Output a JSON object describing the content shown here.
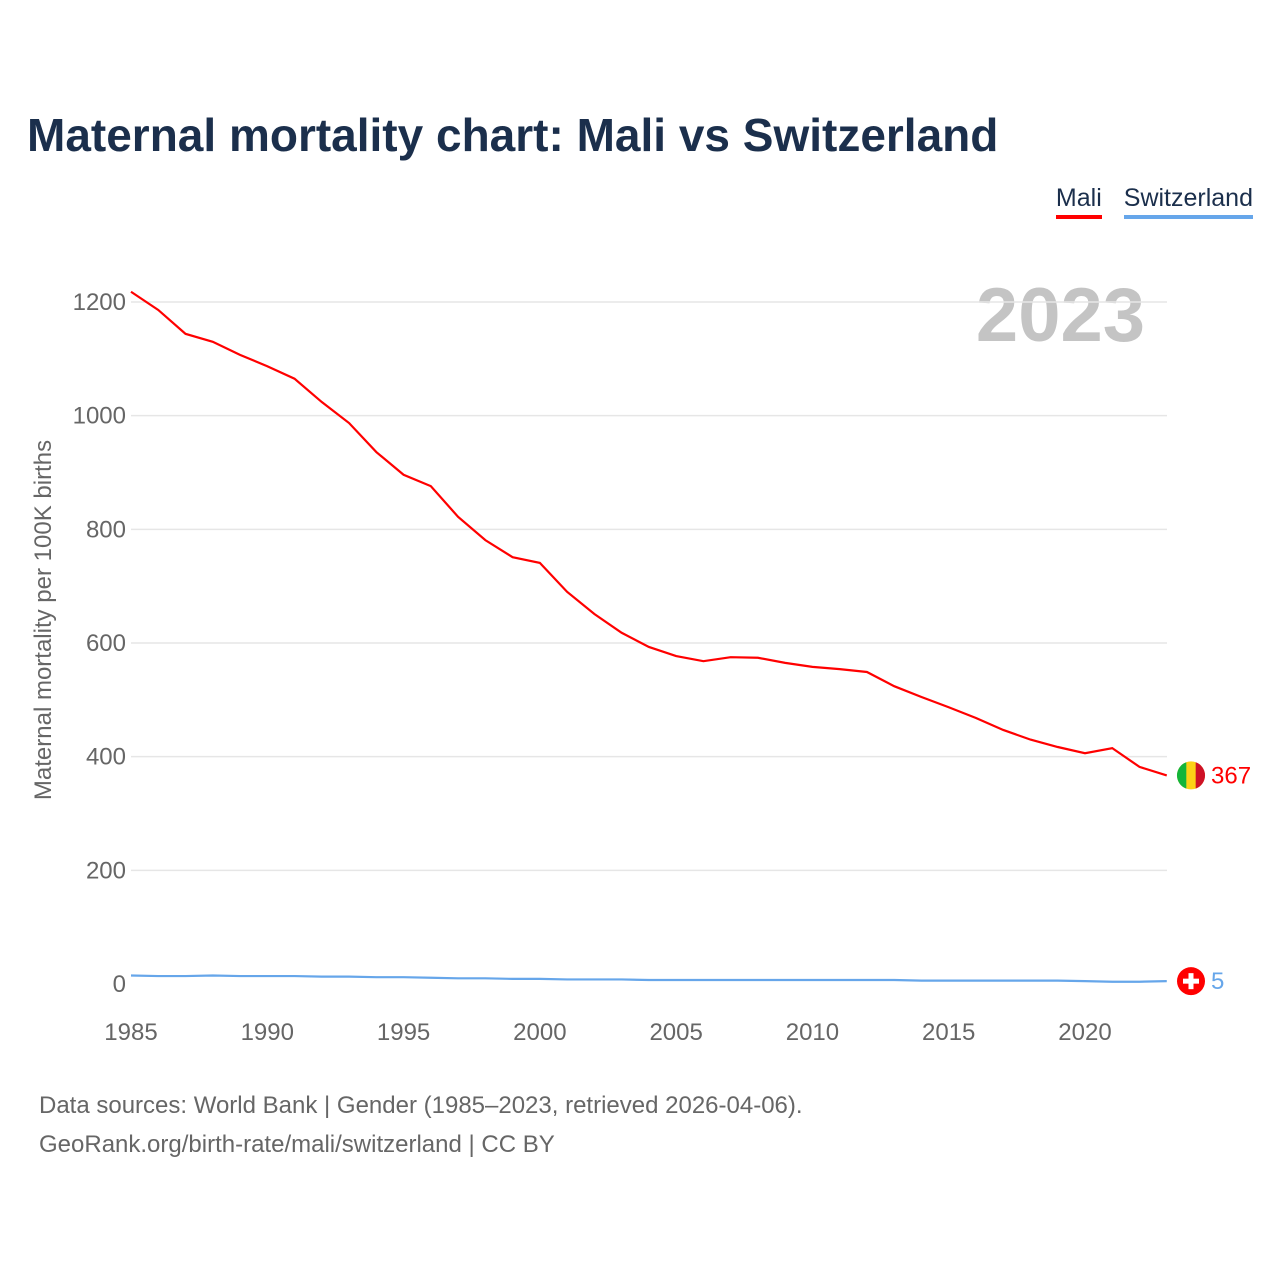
{
  "chart_data": {
    "type": "line",
    "title": "Maternal mortality chart: Mali vs Switzerland",
    "ylabel": "Maternal mortality per 100K births",
    "xlabel": "",
    "year_label": "2023",
    "xlim": [
      1985,
      2023
    ],
    "ylim": [
      0,
      1200
    ],
    "xticks": [
      1985,
      1990,
      1995,
      2000,
      2005,
      2010,
      2015,
      2020
    ],
    "yticks": [
      0,
      200,
      400,
      600,
      800,
      1000,
      1200
    ],
    "grid": true,
    "legend_position": "top-right",
    "x": [
      1985,
      1986,
      1987,
      1988,
      1989,
      1990,
      1991,
      1992,
      1993,
      1994,
      1995,
      1996,
      1997,
      1998,
      1999,
      2000,
      2001,
      2002,
      2003,
      2004,
      2005,
      2006,
      2007,
      2008,
      2009,
      2010,
      2011,
      2012,
      2013,
      2014,
      2015,
      2016,
      2017,
      2018,
      2019,
      2020,
      2021,
      2022,
      2023
    ],
    "series": [
      {
        "name": "Mali",
        "color": "#ff0000",
        "end_label": "367",
        "values": [
          1218,
          1186,
          1144,
          1130,
          1107,
          1087,
          1065,
          1024,
          987,
          936,
          896,
          876,
          822,
          781,
          751,
          741,
          690,
          651,
          618,
          593,
          577,
          568,
          575,
          574,
          565,
          558,
          554,
          549,
          524,
          505,
          487,
          468,
          447,
          430,
          417,
          406,
          415,
          382,
          367
        ]
      },
      {
        "name": "Switzerland",
        "color": "#66a6ea",
        "end_label": "5",
        "values": [
          15,
          14,
          14,
          15,
          14,
          14,
          14,
          13,
          13,
          12,
          12,
          11,
          10,
          10,
          9,
          9,
          8,
          8,
          8,
          7,
          7,
          7,
          7,
          7,
          7,
          7,
          7,
          7,
          7,
          6,
          6,
          6,
          6,
          6,
          6,
          5,
          4,
          4,
          5
        ]
      }
    ]
  },
  "footer": {
    "line1": "Data sources: World Bank | Gender (1985–2023, retrieved 2026-04-06).",
    "line2": "GeoRank.org/birth-rate/mali/switzerland | CC BY"
  }
}
